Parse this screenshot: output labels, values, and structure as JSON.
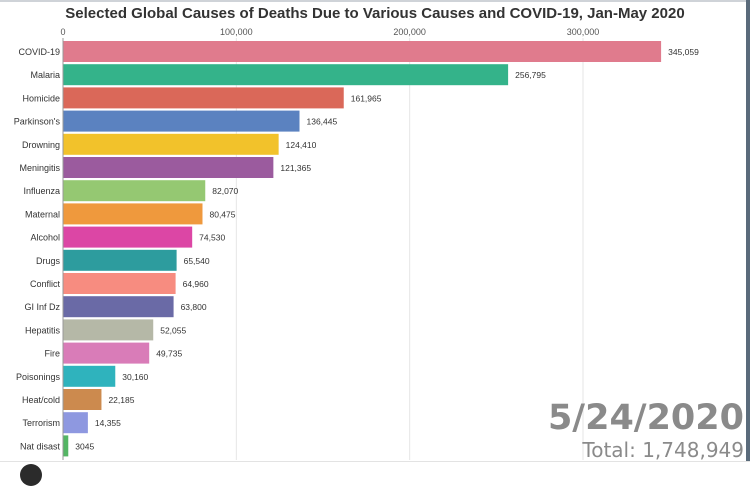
{
  "chart_data": {
    "type": "bar",
    "orientation": "horizontal",
    "title": "Selected Global Causes of Deaths Due to Various Causes and COVID-19, Jan-May 2020",
    "xlim": [
      0,
      340000
    ],
    "xticks": [
      0,
      100000,
      200000,
      300000
    ],
    "xtick_labels": [
      "0",
      "100,000",
      "200,000",
      "300,000"
    ],
    "grid": "vertical",
    "categories": [
      "COVID-19",
      "Malaria",
      "Homicide",
      "Parkinson's",
      "Drowning",
      "Meningitis",
      "Influenza",
      "Maternal",
      "Alcohol",
      "Drugs",
      "Conflict",
      "GI Inf Dz",
      "Hepatitis",
      "Fire",
      "Poisonings",
      "Heat/cold",
      "Terrorism",
      "Nat disast"
    ],
    "values": [
      345059,
      256795,
      161965,
      136445,
      124410,
      121365,
      82070,
      80475,
      74530,
      65540,
      64960,
      63800,
      52055,
      49735,
      30160,
      22185,
      14355,
      3045
    ],
    "value_labels": [
      "345,059",
      "256,795",
      "161,965",
      "136,445",
      "124,410",
      "121,365",
      "82,070",
      "80,475",
      "74,530",
      "65,540",
      "64,960",
      "63,800",
      "52,055",
      "49,735",
      "30,160",
      "22,185",
      "14,355",
      "3045"
    ],
    "colors": [
      "#e07b8d",
      "#34b38a",
      "#da6859",
      "#5b82c0",
      "#f2c22b",
      "#9b5b9e",
      "#95c872",
      "#ef993d",
      "#dc46a5",
      "#2d9c9e",
      "#f78c80",
      "#6a6aa6",
      "#b5b8a7",
      "#d97cb8",
      "#2fb3bd",
      "#cc8a4e",
      "#8e98e0",
      "#54b564"
    ]
  },
  "date_label": "5/24/2020",
  "total_label": "Total: 1,748,949"
}
